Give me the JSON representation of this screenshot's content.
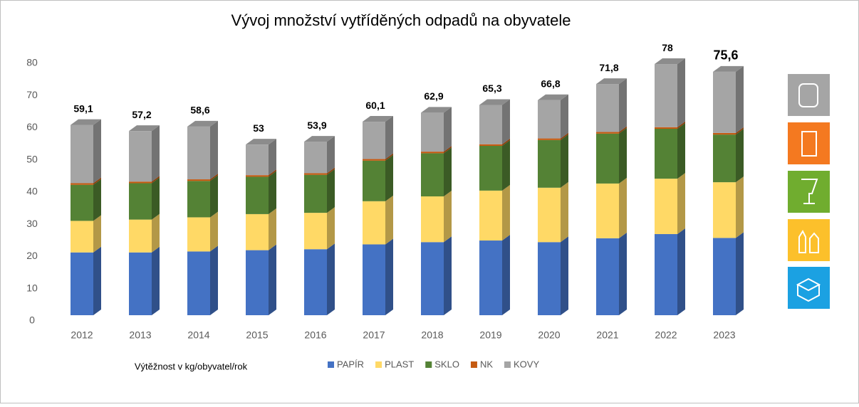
{
  "chart_data": {
    "type": "bar3d_stacked",
    "title": "Vývoj množství vytříděných odpadů na obyvatele",
    "annotation": "Výtěžnost v kg/obyvatel/rok",
    "categories": [
      "2012",
      "2013",
      "2014",
      "2015",
      "2016",
      "2017",
      "2018",
      "2019",
      "2020",
      "2021",
      "2022",
      "2023"
    ],
    "series": [
      {
        "name": "PAPÍR",
        "color": "#4472c4",
        "values": [
          19.5,
          19.5,
          19.8,
          20.2,
          20.5,
          22,
          22.7,
          23.2,
          22.7,
          23.9,
          25.2,
          24
        ]
      },
      {
        "name": "PLAST",
        "color": "#ffd966",
        "values": [
          9.8,
          10.2,
          10.6,
          11.2,
          11.3,
          13.4,
          14.2,
          15.5,
          16.9,
          17,
          17.2,
          17.3
        ]
      },
      {
        "name": "SKLO",
        "color": "#548235",
        "values": [
          11.2,
          11.3,
          11.3,
          11.6,
          11.8,
          12.6,
          13.4,
          13.9,
          14.8,
          15.5,
          15.5,
          14.8
        ]
      },
      {
        "name": "NK",
        "color": "#c55a11",
        "values": [
          0.5,
          0.5,
          0.5,
          0.5,
          0.5,
          0.5,
          0.5,
          0.5,
          0.5,
          0.5,
          0.5,
          0.5
        ]
      },
      {
        "name": "KOVY",
        "color": "#a5a5a5",
        "values": [
          18.1,
          15.7,
          16.4,
          9.5,
          9.8,
          11.6,
          12.1,
          12.2,
          11.9,
          14.9,
          19.6,
          19
        ]
      }
    ],
    "totals": [
      59.1,
      57.2,
      58.6,
      53,
      53.9,
      60.1,
      62.9,
      65.3,
      66.8,
      71.8,
      78,
      75.6
    ],
    "total_labels": [
      "59,1",
      "57,2",
      "58,6",
      "53",
      "53,9",
      "60,1",
      "62,9",
      "65,3",
      "66,8",
      "71,8",
      "78",
      "75,6"
    ],
    "ylim": [
      0,
      80
    ],
    "yticks": [
      0,
      10,
      20,
      30,
      40,
      50,
      60,
      70,
      80
    ],
    "grid": false
  }
}
